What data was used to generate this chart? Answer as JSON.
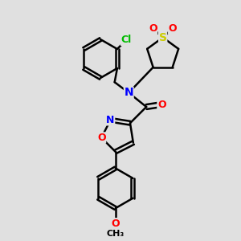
{
  "bg_color": "#e0e0e0",
  "bond_color": "#000000",
  "bond_width": 1.8,
  "atom_colors": {
    "N": "#0000ff",
    "O": "#ff0000",
    "S": "#cccc00",
    "Cl": "#00bb00",
    "C": "#000000"
  },
  "font_size": 9,
  "figsize": [
    3.0,
    3.0
  ],
  "dpi": 100
}
